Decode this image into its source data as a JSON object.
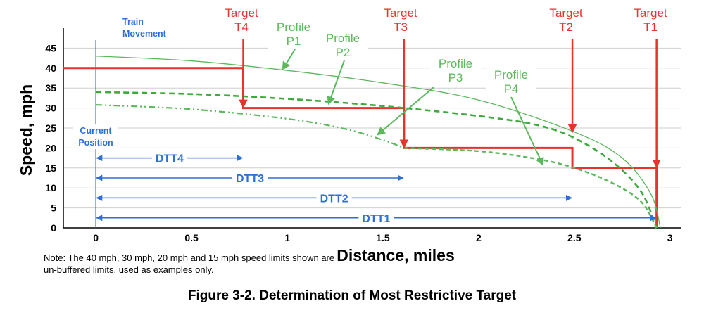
{
  "chart_data": {
    "type": "line",
    "xlabel": "Distance, miles",
    "ylabel": "Speed, mph",
    "xlim": [
      -0.17,
      3.06
    ],
    "ylim": [
      0,
      50
    ],
    "grid": "horizontal",
    "x_ticks": [
      0,
      0.5,
      1,
      1.5,
      2,
      2.5,
      3
    ],
    "x_tick_labels": [
      "0",
      "0.5",
      "1",
      "1.5",
      "2",
      "2.5",
      "3"
    ],
    "y_ticks": [
      0,
      5,
      10,
      15,
      20,
      25,
      30,
      35,
      40,
      45
    ],
    "y_tick_labels": [
      "0",
      "5",
      "10",
      "15",
      "20",
      "25",
      "30",
      "35",
      "40",
      "45"
    ],
    "speed_limit": {
      "name": "",
      "color": "#e8322d",
      "x": [
        -0.17,
        0.77,
        0.77,
        1.61,
        1.61,
        2.49,
        2.49,
        2.93,
        2.93
      ],
      "y": [
        40,
        40,
        30,
        30,
        20,
        20,
        15,
        15,
        0
      ]
    },
    "series": [
      {
        "name": "P1",
        "style": "solid",
        "color": "#5cb85c",
        "x": [
          0,
          0.5,
          1.0,
          1.5,
          2.0,
          2.5,
          2.75,
          2.9,
          2.95
        ],
        "y": [
          43,
          41.8,
          39.4,
          36.3,
          32.0,
          24.0,
          17.5,
          8.5,
          0
        ]
      },
      {
        "name": "P2",
        "style": "dashed",
        "color": "#3cab3c",
        "x": [
          0,
          0.5,
          1.0,
          1.5,
          2.0,
          2.3,
          2.5,
          2.7,
          2.85,
          2.93
        ],
        "y": [
          34,
          33.5,
          32.3,
          30.5,
          28.0,
          25.8,
          22.5,
          16.5,
          9.0,
          0
        ]
      },
      {
        "name": "P3",
        "style": "dash-dot-dot",
        "color": "#5cb85c",
        "x": [
          0,
          0.5,
          1.0,
          1.3,
          1.5,
          1.61
        ],
        "y": [
          30.8,
          29.7,
          27.3,
          24.8,
          22.0,
          20.0
        ]
      },
      {
        "name": "P4",
        "style": "dashed-thin",
        "color": "#5cb85c",
        "x": [
          1.61,
          2.0,
          2.3,
          2.5,
          2.7,
          2.85,
          2.93
        ],
        "y": [
          20.0,
          19.2,
          17.3,
          15.0,
          11.2,
          6.5,
          0
        ]
      }
    ],
    "targets": [
      {
        "label_top": "Target",
        "label_bottom": "T4",
        "x": 0.77,
        "y": 30
      },
      {
        "label_top": "Target",
        "label_bottom": "T3",
        "x": 1.61,
        "y": 20
      },
      {
        "label_top": "Target",
        "label_bottom": "T2",
        "x": 2.49,
        "y": 15
      },
      {
        "label_top": "Target",
        "label_bottom": "T1",
        "x": 2.93,
        "y": 0
      }
    ],
    "profile_labels": [
      {
        "line1": "Profile",
        "line2": "P1"
      },
      {
        "line1": "Profile",
        "line2": "P2"
      },
      {
        "line1": "Profile",
        "line2": "P3"
      },
      {
        "line1": "Profile",
        "line2": "P4"
      }
    ],
    "dtt": [
      {
        "label": "DTT4",
        "x_end": 0.77,
        "y": 17.5
      },
      {
        "label": "DTT3",
        "x_end": 1.61,
        "y": 12.5
      },
      {
        "label": "DTT2",
        "x_end": 2.49,
        "y": 7.5
      },
      {
        "label": "DTT1",
        "x_end": 2.93,
        "y": 2.5
      }
    ],
    "annotations": {
      "train_movement_1": "Train",
      "train_movement_2": "Movement",
      "current_position_1": "Current",
      "current_position_2": "Position",
      "colors": {
        "limit": "#e8322d",
        "profile": "#5cb85c",
        "dtt": "#2e6fd6"
      }
    }
  },
  "note": "Note: The 40 mph, 30 mph, 20 mph and 15 mph speed limits shown are un-buffered limits, used as examples only.",
  "caption": "Figure 3-2.  Determination of Most Restrictive Target"
}
